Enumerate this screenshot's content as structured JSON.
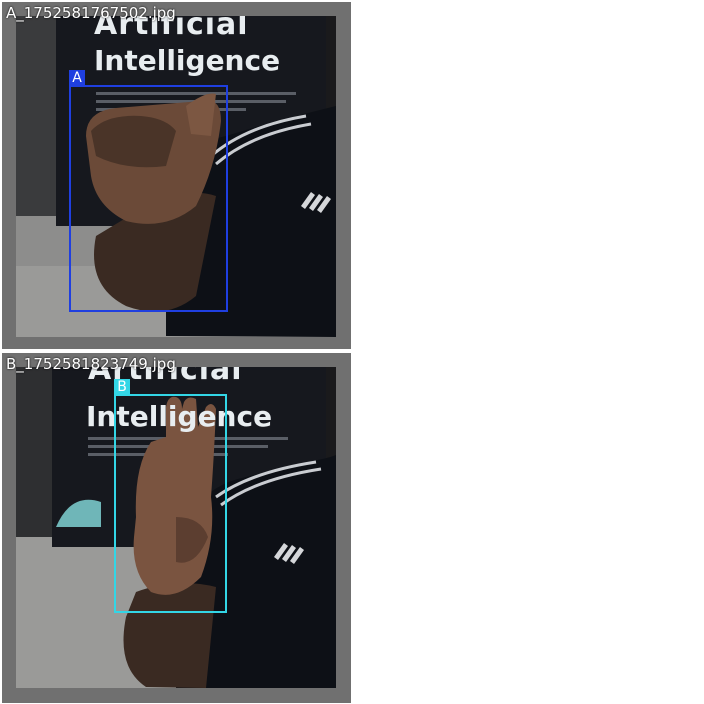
{
  "images": [
    {
      "filename": "A_1752581767502.jpg",
      "box_label": "A",
      "box_color": "#1f3fe0",
      "scene_text": {
        "line1": "Artificial",
        "line2": "Intelligence"
      }
    },
    {
      "filename": "B_1752581823749.jpg",
      "box_label": "B",
      "box_color": "#33d6e6",
      "scene_text": {
        "line1": "Artificial",
        "line2": "Intelligence"
      }
    }
  ]
}
